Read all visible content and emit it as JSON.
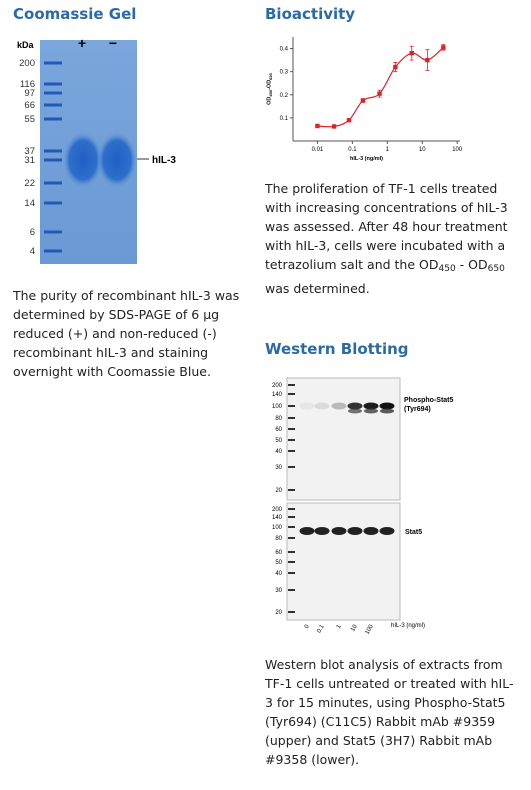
{
  "gel": {
    "heading": "Coomassie Gel",
    "unit": "kDa",
    "lanes": [
      "+",
      "−"
    ],
    "band_label": "hIL-3",
    "markers": [
      200,
      116,
      97,
      66,
      55,
      37,
      31,
      22,
      14,
      6,
      4
    ],
    "caption": "The purity of recombinant hIL-3 was determined by SDS-PAGE of 6 µg reduced (+) and non-reduced (-) recombinant hIL-3 and staining overnight with Coomassie Blue."
  },
  "bioactivity": {
    "heading": "Bioactivity",
    "caption": [
      "The proliferation of TF-1 cells treated with increasing concentrations of hIL-3 was assessed. After 48 hour treatment with hIL-3, cells were incubated with a tetrazolium salt and the ",
      "OD",
      "450",
      " - ",
      "OD",
      "650",
      " was determined."
    ]
  },
  "chart_data": {
    "type": "scatter",
    "xlabel": "hIL-3 (ng/ml)",
    "ylabel": [
      "OD",
      "450",
      "-OD",
      "650"
    ],
    "color": "#d8262b",
    "xlog": true,
    "x": [
      0.01,
      0.03,
      0.08,
      0.2,
      0.6,
      1.7,
      5,
      14,
      40
    ],
    "values": [
      0.065,
      0.063,
      0.09,
      0.175,
      0.205,
      0.32,
      0.38,
      0.35,
      0.405
    ],
    "errors": [
      0.005,
      0.005,
      0.005,
      0.008,
      0.015,
      0.02,
      0.03,
      0.045,
      0.012
    ],
    "xlim": [
      0.002,
      120
    ],
    "ylim": [
      0,
      0.45
    ],
    "xticks": [
      0.01,
      0.1,
      1,
      10,
      100
    ],
    "yticks": [
      0.1,
      0.2,
      0.3,
      0.4
    ]
  },
  "western": {
    "heading": "Western Blotting",
    "markers": [
      200,
      140,
      100,
      80,
      60,
      50,
      40,
      30,
      20
    ],
    "lanes": [
      "0",
      "0.1",
      "1",
      "10",
      "100"
    ],
    "lane_unit": "hIL-3 (ng/ml)",
    "upper_label": [
      "Phospho-Stat5",
      "(Tyr694)"
    ],
    "lower_label": "Stat5",
    "caption": "Western blot analysis of extracts from TF-1 cells untreated or treated with hIL-3 for 15 minutes, using Phospho-Stat5 (Tyr694) (C11C5) Rabbit mAb #9359 (upper) and Stat5 (3H7) Rabbit mAb #9358 (lower)."
  }
}
